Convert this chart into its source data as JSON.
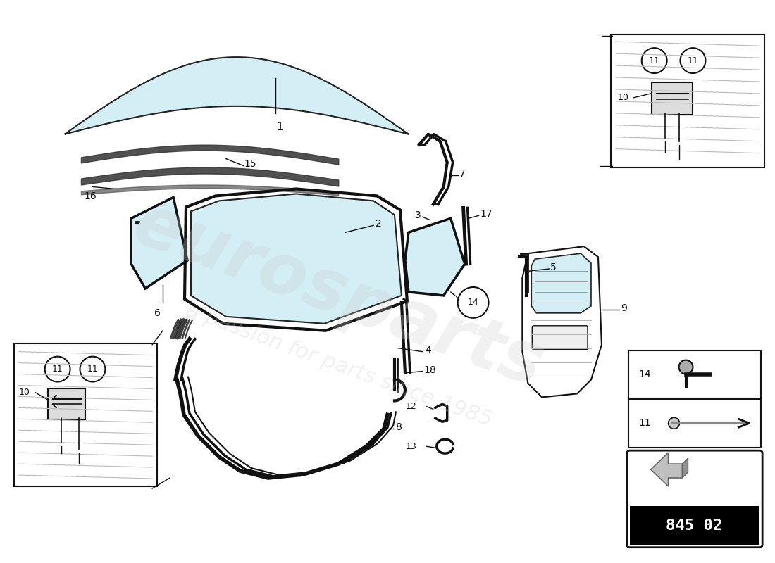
{
  "background_color": "#ffffff",
  "glass_color": "#d4eef5",
  "glass_edge_color": "#222222",
  "line_color": "#111111",
  "label_color": "#111111",
  "part_number": "845 02",
  "seal_color": "#111111",
  "inset_bg": "#f5f5f5",
  "gray_line": "#aaaaaa"
}
